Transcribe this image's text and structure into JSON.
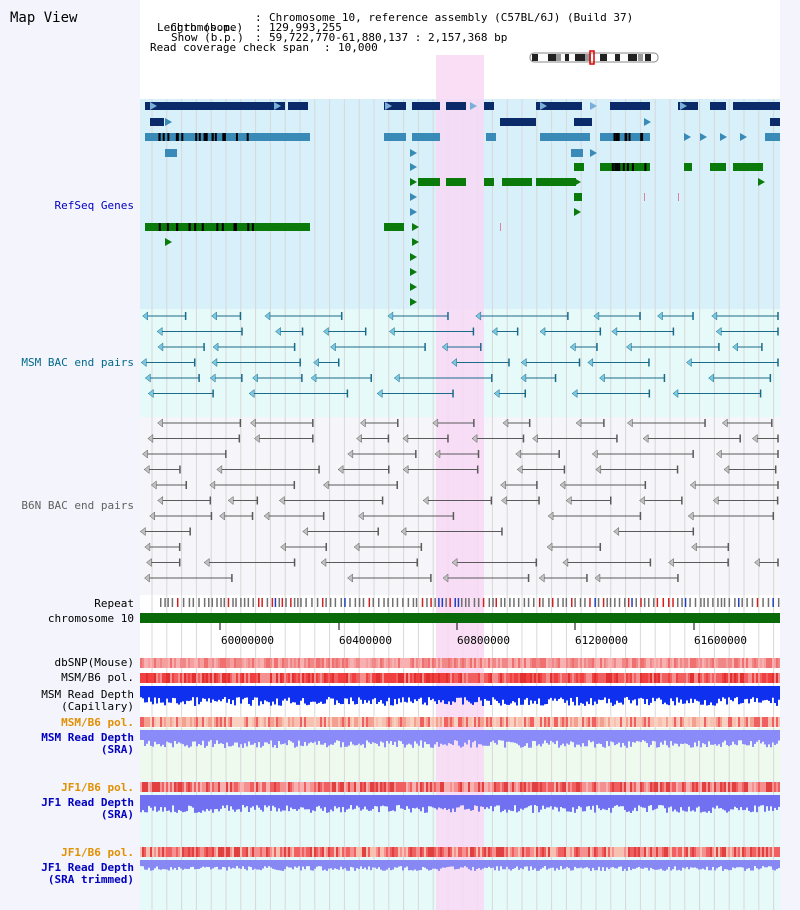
{
  "header": {
    "title": "Map View",
    "chromosome_label": "Chromosome",
    "chromosome_value": "Chromosome 10, reference assembly (C57BL/6J) (Build 37)",
    "length_label": "Length (b.p.)",
    "length_value": "129,993,255",
    "show_label": "Show (b.p.)",
    "show_value": "59,722,770-61,880,137 : 2,157,368 bp",
    "span_label": "Read coverage check span",
    "span_value": "10,000",
    "separator": ":"
  },
  "tracks": {
    "refseq": "RefSeq Genes",
    "msm_bac": "MSM BAC end pairs",
    "b6n_bac": "B6N BAC end pairs",
    "repeat": "Repeat",
    "chromosome": "chromosome 10",
    "dbsnp": "dbSNP(Mouse)",
    "msm_b6_pol_1": "MSM/B6 pol.",
    "msm_read_depth_cap_1": "MSM Read Depth",
    "msm_read_depth_cap_2": "(Capillary)",
    "msm_b6_pol_2": "MSM/B6 pol.",
    "msm_read_depth_sra_1": "MSM Read Depth",
    "msm_read_depth_sra_2": "(SRA)",
    "jf1_b6_pol_1": "JF1/B6 pol.",
    "jf1_read_depth_sra_1": "JF1 Read Depth",
    "jf1_read_depth_sra_2": "(SRA)",
    "jf1_b6_pol_2": "JF1/B6 pol.",
    "jf1_read_depth_trim_1": "JF1 Read Depth",
    "jf1_read_depth_trim_2": "(SRA trimmed)"
  },
  "axis": {
    "ticks": [
      "60000000",
      "60400000",
      "60800000",
      "61200000",
      "61600000"
    ]
  },
  "colors": {
    "refseq_bg": "#d8f0fa",
    "msm_bg": "#e6fafa",
    "b6n_bg": "#f6f6fa",
    "highlight": "#f8d8f4",
    "gene_dark": "#0a2a6a",
    "gene_mid": "#3a8ab8",
    "gene_green": "#0a7a0a",
    "msm_line": "#1a6a8a",
    "b6n_line": "#5a5a5a",
    "chromosome": "#0a6a0a",
    "label_blue": "#0000c0",
    "label_teal": "#006a8a",
    "label_gray": "#606060",
    "label_orange": "#e09000"
  }
}
